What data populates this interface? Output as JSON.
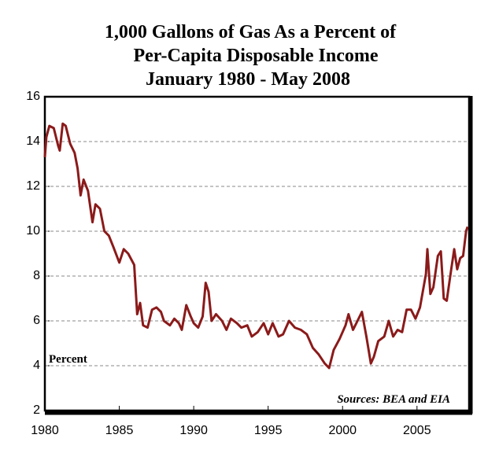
{
  "chart_data": {
    "type": "line",
    "title": [
      "1,000 Gallons of Gas As a Percent of",
      "Per-Capita Disposable Income",
      "January 1980 - May 2008"
    ],
    "annotations": [
      "Percent",
      "Sources: BEA and EIA"
    ],
    "xlim": [
      1980,
      2008.5
    ],
    "xticks": [
      1980,
      1985,
      1990,
      1995,
      2000,
      2005
    ],
    "ylim": [
      2,
      16
    ],
    "yticks": [
      2,
      4,
      6,
      8,
      10,
      12,
      14,
      16
    ],
    "grid": true,
    "series": [
      {
        "color": "#8b1a1a",
        "x": [
          1980.0,
          1980.1,
          1980.3,
          1980.6,
          1980.9,
          1981.0,
          1981.2,
          1981.4,
          1981.7,
          1982.0,
          1982.2,
          1982.4,
          1982.6,
          1982.9,
          1983.2,
          1983.4,
          1983.7,
          1984.0,
          1984.3,
          1984.6,
          1985.0,
          1985.3,
          1985.6,
          1986.0,
          1986.2,
          1986.4,
          1986.6,
          1986.9,
          1987.2,
          1987.5,
          1987.8,
          1988.0,
          1988.4,
          1988.7,
          1989.0,
          1989.2,
          1989.5,
          1989.8,
          1990.0,
          1990.3,
          1990.6,
          1990.8,
          1991.0,
          1991.2,
          1991.5,
          1991.9,
          1992.2,
          1992.5,
          1992.9,
          1993.2,
          1993.6,
          1993.9,
          1994.3,
          1994.7,
          1995.0,
          1995.3,
          1995.7,
          1996.0,
          1996.4,
          1996.8,
          1997.2,
          1997.6,
          1998.0,
          1998.4,
          1998.8,
          1999.1,
          1999.4,
          1999.8,
          2000.2,
          2000.4,
          2000.7,
          2001.0,
          2001.3,
          2001.6,
          2001.9,
          2002.1,
          2002.4,
          2002.8,
          2003.1,
          2003.4,
          2003.7,
          2004.0,
          2004.3,
          2004.6,
          2004.9,
          2005.2,
          2005.6,
          2005.7,
          2005.9,
          2006.1,
          2006.4,
          2006.6,
          2006.8,
          2007.0,
          2007.3,
          2007.5,
          2007.7,
          2007.9,
          2008.1,
          2008.3,
          2008.4
        ],
        "values": [
          13.3,
          14.2,
          14.7,
          14.6,
          13.8,
          13.6,
          14.8,
          14.7,
          13.9,
          13.5,
          12.8,
          11.6,
          12.3,
          11.8,
          10.4,
          11.2,
          11.0,
          10.0,
          9.8,
          9.3,
          8.6,
          9.2,
          9.0,
          8.5,
          6.3,
          6.8,
          5.8,
          5.7,
          6.5,
          6.6,
          6.4,
          6.0,
          5.8,
          6.1,
          5.9,
          5.6,
          6.7,
          6.2,
          5.9,
          5.7,
          6.2,
          7.7,
          7.3,
          6.0,
          6.3,
          6.0,
          5.6,
          6.1,
          5.9,
          5.7,
          5.8,
          5.3,
          5.5,
          5.9,
          5.4,
          5.9,
          5.3,
          5.4,
          6.0,
          5.7,
          5.6,
          5.4,
          4.8,
          4.5,
          4.1,
          3.9,
          4.7,
          5.2,
          5.8,
          6.3,
          5.6,
          6.0,
          6.4,
          5.3,
          4.1,
          4.4,
          5.1,
          5.3,
          6.0,
          5.3,
          5.6,
          5.5,
          6.5,
          6.5,
          6.1,
          6.6,
          8.1,
          9.2,
          7.2,
          7.5,
          8.9,
          9.1,
          7.0,
          6.9,
          8.3,
          9.2,
          8.3,
          8.8,
          8.9,
          10.0,
          10.2
        ]
      }
    ]
  }
}
